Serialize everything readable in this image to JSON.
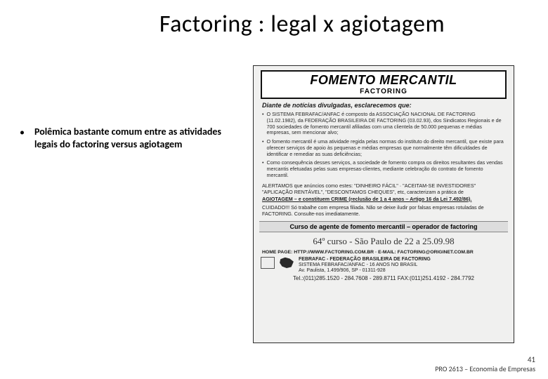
{
  "title": "Factoring : legal x agiotagem",
  "bullet": {
    "marker": "•",
    "text": "Polêmica bastante comum entre as atividades legais do factoring versus agiotagem"
  },
  "ad": {
    "titleMain": "FOMENTO MERCANTIL",
    "titleSub": "FACTORING",
    "lead": "Diante de notícias divulgadas, esclarecemos que:",
    "p1": "O SISTEMA FEBRAFAC/ANFAC é composto da ASSOCIAÇÃO NACIONAL DE FACTORING (11.02.1982), da FEDERAÇÃO BRASILEIRA DE FACTORING (03.02.93), dos Sindicatos Regionais e de 700 sociedades de fomento mercantil afiliadas com uma clientela de 50.000 pequenas e médias empresas, sem mencionar alvo;",
    "p2": "O fomento mercantil é uma atividade regida pelas normas do instituto do direito mercantil, que existe para oferecer serviços de apoio às pequenas e médias empresas que normalmente têm dificuldades de identificar e remediar as suas deficiências;",
    "p3": "Como consequência desses serviços, a sociedade de fomento compra os direitos resultantes das vendas mercantis efetuadas pelas suas empresas-clientes, mediante celebração do contrato de fomento mercantil.",
    "alert": "ALERTAMOS que anúncios como estes: \"DINHEIRO FÁCIL\" · \"ACEITAM-SE INVESTIDORES\" \"APLICAÇÃO RENTÁVEL\", \"DESCONTAMOS CHEQUES\", etc, caracterizam a prática de",
    "alertCrime": "AGIOTAGEM – e constituem CRIME (reclusão de 1 a 4 anos – Artigo 16 da Lei 7.492/86).",
    "caution": "CUIDADO!!! Só trabalhe com empresa filiada. Não se deixe iludir por falsas empresas rotuladas de FACTORING. Consulte-nos imediatamente.",
    "strip": "Curso de agente de fomento mercantil – operador de factoring",
    "course": "64º curso - São Paulo de 22 a 25.09.98",
    "homepage": "HOME PAGE: HTTP://WWW.FACTORING.COM.BR · E-MAIL: FACTORING@ORIGINET.COM.BR",
    "orgName": "FEBRAFAC - FEDERAÇÃO BRASILEIRA DE FACTORING",
    "orgSub": "SISTEMA FEBRAFAC/ANFAC - 16 ANOS NO BRASIL",
    "addr": "Av. Paulista, 1.499/906, SP - 01311-928",
    "tel": "Tel.:(011)285.1520 - 284.7608 - 289.8711 FAX:(011)251.4192 - 284.7792"
  },
  "footer": {
    "pageNum": "41",
    "course": "PRO 2613 – Economia de Empresas"
  },
  "colors": {
    "bg": "#ffffff",
    "text": "#000000",
    "adBg": "#f0f0ef",
    "adBorder": "#2a2a2a"
  },
  "fonts": {
    "title_size": 34,
    "bullet_size": 14,
    "footer_size": 10
  }
}
